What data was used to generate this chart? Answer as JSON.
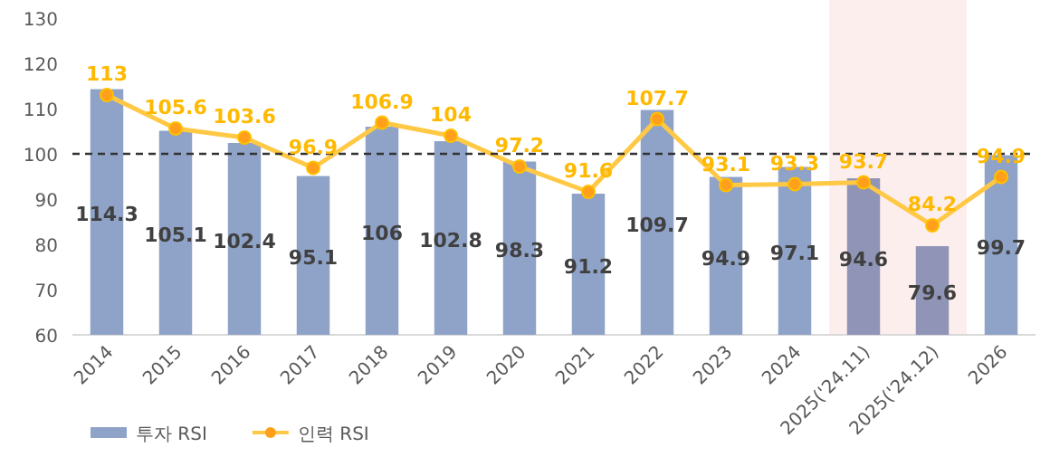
{
  "chart_data": {
    "type": "bar",
    "categories": [
      "2014",
      "2015",
      "2016",
      "2017",
      "2018",
      "2019",
      "2020",
      "2021",
      "2022",
      "2023",
      "2024",
      "2025('24.11)",
      "2025('24.12)",
      "2026"
    ],
    "series": [
      {
        "name": "투자 RSI",
        "color": "#8fa3c8",
        "colors": [
          "#8fa3c8",
          "#8fa3c8",
          "#8fa3c8",
          "#8fa3c8",
          "#8fa3c8",
          "#8fa3c8",
          "#8fa3c8",
          "#8fa3c8",
          "#8fa3c8",
          "#8fa3c8",
          "#8fa3c8",
          "#9095b8",
          "#9095b8",
          "#8fa3c8"
        ],
        "values": [
          114.3,
          105.1,
          102.4,
          95.1,
          106,
          102.8,
          98.3,
          91.2,
          109.7,
          94.9,
          97.1,
          94.6,
          79.6,
          99.7
        ]
      },
      {
        "name": "인력 RSI",
        "type": "line",
        "color": "#ffc845",
        "marker": "circle",
        "values": [
          113,
          105.6,
          103.6,
          96.9,
          106.9,
          104,
          97.2,
          91.6,
          107.7,
          93.1,
          93.3,
          93.7,
          84.2,
          94.9
        ]
      }
    ],
    "data_labels": true,
    "ylim": [
      60,
      130
    ],
    "yticks": [
      60,
      70,
      80,
      90,
      100,
      110,
      120,
      130
    ],
    "ref_lines": [
      {
        "axis": "y",
        "value": 100,
        "line_style": "dashed",
        "color": "#333333"
      }
    ],
    "bands": [
      {
        "axis": "x",
        "from": "2025('24.11)",
        "to": "2025('24.12)",
        "color": "#fdeeee"
      }
    ],
    "grid": false,
    "legend": "bottom left"
  }
}
